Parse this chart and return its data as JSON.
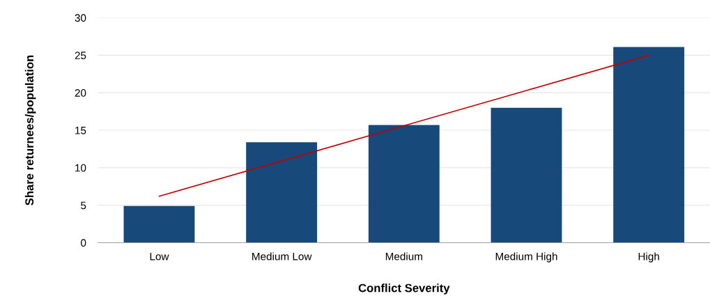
{
  "chart_data": {
    "type": "bar",
    "categories": [
      "Low",
      "Medium Low",
      "Medium",
      "Medium High",
      "High"
    ],
    "series": [
      {
        "color": "#17497a",
        "values": [
          4.9,
          13.4,
          15.7,
          18.0,
          26.1
        ]
      },
      {
        "type": "line",
        "color": "#c00000",
        "values": [
          6.2,
          10.9,
          15.6,
          20.3,
          25.0
        ]
      }
    ],
    "xlabel": "Conflict Severity",
    "ylabel": "Share returnees/population",
    "ylim": [
      0,
      30
    ],
    "yticks": [
      0,
      5,
      10,
      15,
      20,
      25,
      30
    ],
    "grid": "y",
    "legend": false
  }
}
